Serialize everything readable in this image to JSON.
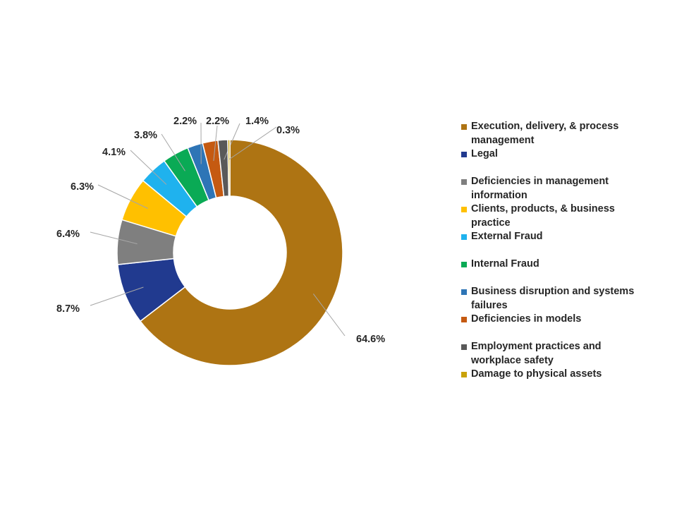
{
  "chart_data": {
    "type": "pie",
    "donut": true,
    "title": "",
    "legend_position": "right",
    "slices": [
      {
        "name": "Execution, delivery, & process management",
        "value": 64.6,
        "label": "64.6%",
        "color": "#AE7413"
      },
      {
        "name": "Legal",
        "value": 8.7,
        "label": "8.7%",
        "color": "#213A8F"
      },
      {
        "name": "Deficiencies in management information",
        "value": 6.4,
        "label": "6.4%",
        "color": "#7F7F7F"
      },
      {
        "name": "Clients, products, & business practice",
        "value": 6.3,
        "label": "6.3%",
        "color": "#FFC000"
      },
      {
        "name": "External Fraud",
        "value": 4.1,
        "label": "4.1%",
        "color": "#1FB2EE"
      },
      {
        "name": "Internal Fraud",
        "value": 3.8,
        "label": "3.8%",
        "color": "#0AAA55"
      },
      {
        "name": "Business disruption and systems failures",
        "value": 2.2,
        "label": "2.2%",
        "color": "#2E75B6"
      },
      {
        "name": "Deficiencies in models",
        "value": 2.2,
        "label": "2.2%",
        "color": "#C55A11"
      },
      {
        "name": "Employment practices and workplace safety",
        "value": 1.4,
        "label": "1.4%",
        "color": "#595959"
      },
      {
        "name": "Damage to physical assets",
        "value": 0.3,
        "label": "0.3%",
        "color": "#C9A20A"
      }
    ]
  }
}
